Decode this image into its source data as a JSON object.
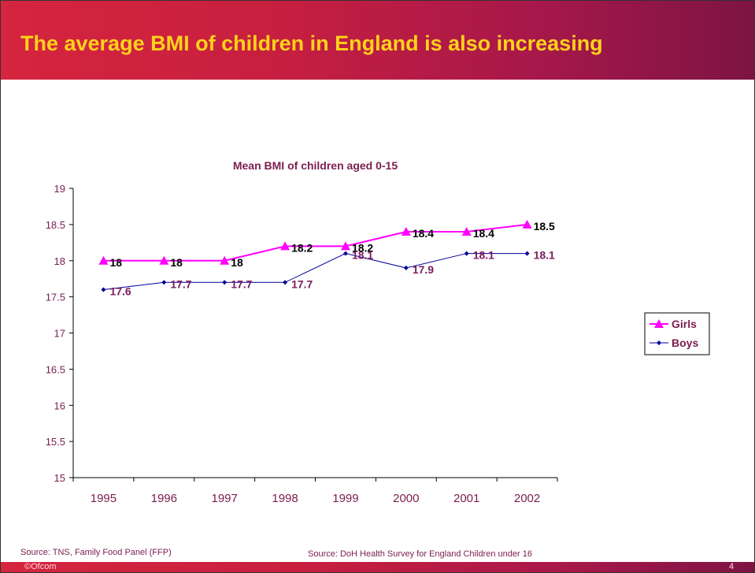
{
  "slide": {
    "title": "The average BMI of children in England is also increasing",
    "source_left": "Source: TNS, Family Food Panel (FFP)",
    "source_right": "Source: DoH Health Survey for England Children under 16",
    "footer_copyright": "©Ofcom",
    "page_number": "4"
  },
  "chart_data": {
    "type": "line",
    "title": "Mean BMI of children aged 0-15",
    "xlabel": "",
    "ylabel": "",
    "categories": [
      "1995",
      "1996",
      "1997",
      "1998",
      "1999",
      "2000",
      "2001",
      "2002"
    ],
    "ylim": [
      15,
      19
    ],
    "yticks": [
      "15",
      "15.5",
      "16",
      "16.5",
      "17",
      "17.5",
      "18",
      "18.5",
      "19"
    ],
    "grid": false,
    "legend_position": "right",
    "series": [
      {
        "name": "Girls",
        "values": [
          18,
          18,
          18,
          18.2,
          18.2,
          18.4,
          18.4,
          18.5
        ],
        "labels": [
          "18",
          "18",
          "18",
          "18.2",
          "18.2",
          "18.4",
          "18.4",
          "18.5"
        ],
        "color": "#ff00ff",
        "marker": "triangle",
        "label_color": "#000000"
      },
      {
        "name": "Boys",
        "values": [
          17.6,
          17.7,
          17.7,
          17.7,
          18.1,
          17.9,
          18.1,
          18.1
        ],
        "labels": [
          "17.6",
          "17.7",
          "17.7",
          "17.7",
          "18.1",
          "17.9",
          "18.1",
          "18.1"
        ],
        "color": "#000099",
        "marker": "diamond",
        "label_color": "#7a1d5e"
      }
    ]
  }
}
